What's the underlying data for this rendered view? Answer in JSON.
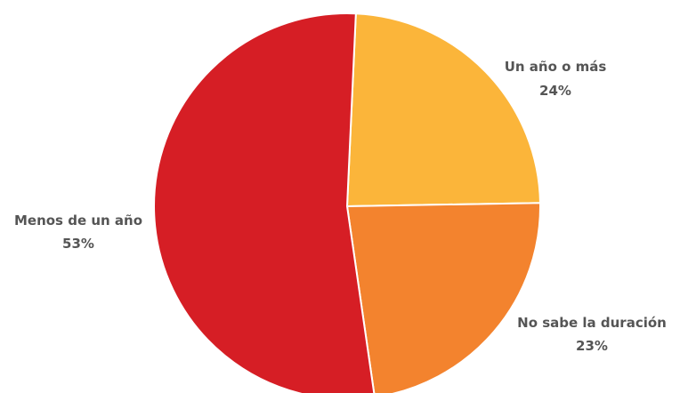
{
  "chart_data": {
    "type": "pie",
    "title": "",
    "slices": [
      {
        "label": "Un año o más",
        "value": 24,
        "value_label": "24%",
        "color": "#fbb53a"
      },
      {
        "label": "No sabe la duración",
        "value": 23,
        "value_label": "23%",
        "color": "#f3832e"
      },
      {
        "label": "Menos de un año",
        "value": 53,
        "value_label": "53%",
        "color": "#d61e25"
      }
    ],
    "start_direction": "12 o'clock, clockwise",
    "legend": "none (labels placed beside slices)"
  }
}
